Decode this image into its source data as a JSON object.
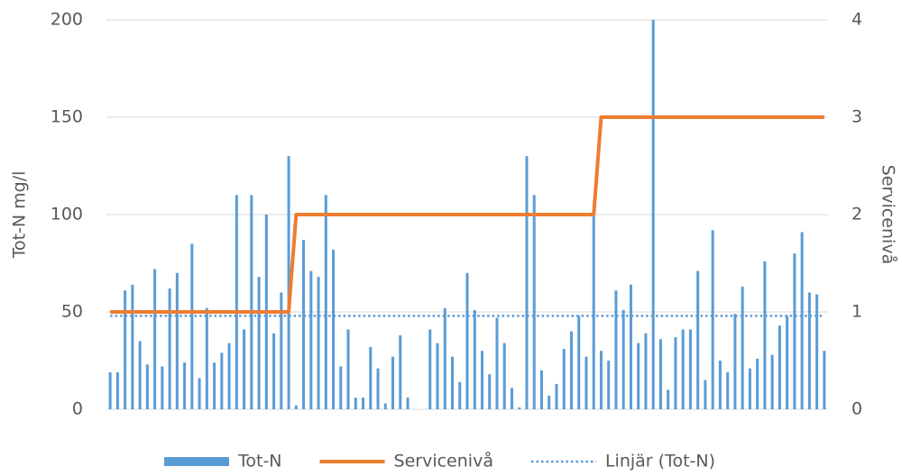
{
  "chart_data": {
    "type": "bar",
    "ylabel": "Tot-N mg/l",
    "y2label": "Servicenivå",
    "categories": [
      null,
      null,
      null,
      null,
      null,
      null,
      null,
      null,
      null,
      null,
      null,
      null,
      null,
      null,
      null,
      null,
      null,
      null,
      null,
      null,
      null,
      null,
      null,
      null,
      null,
      null,
      null,
      null,
      null,
      null,
      null,
      null,
      null,
      null,
      null,
      null,
      null,
      null,
      null,
      null,
      null,
      null,
      null,
      null,
      null,
      null,
      null,
      null,
      null,
      null,
      null,
      null,
      null,
      null,
      null,
      null,
      null,
      null,
      null,
      null,
      null,
      null,
      null,
      null,
      null,
      null,
      null,
      null,
      null,
      null,
      null,
      null,
      null,
      null,
      null,
      null,
      null,
      null,
      null,
      null,
      null,
      null,
      null,
      null,
      null,
      null,
      null,
      null,
      null,
      null,
      null,
      null,
      null,
      null,
      null,
      null,
      null
    ],
    "series": [
      {
        "name": "Tot-N",
        "type": "bar",
        "color": "#5b9bd5",
        "values": [
          19,
          19,
          61,
          64,
          35,
          23,
          72,
          22,
          62,
          70,
          24,
          85,
          16,
          52,
          24,
          29,
          34,
          110,
          41,
          110,
          68,
          100,
          39,
          60,
          130,
          2,
          87,
          71,
          68,
          110,
          82,
          22,
          41,
          6,
          6,
          32,
          21,
          3,
          27,
          38,
          6,
          0,
          0,
          41,
          34,
          52,
          27,
          14,
          70,
          51,
          30,
          18,
          47,
          34,
          11,
          1,
          130,
          110,
          20,
          7,
          13,
          31,
          40,
          48,
          27,
          100,
          30,
          25,
          61,
          51,
          64,
          34,
          39,
          200,
          36,
          10,
          37,
          41,
          41,
          71,
          15,
          92,
          25,
          19,
          49,
          63,
          21,
          26,
          76,
          28,
          43,
          48,
          80,
          91,
          60,
          59,
          30
        ]
      },
      {
        "name": "Servicenivå",
        "type": "line",
        "axis": "y2",
        "color": "#ed7d31",
        "values": [
          1,
          1,
          1,
          1,
          1,
          1,
          1,
          1,
          1,
          1,
          1,
          1,
          1,
          1,
          1,
          1,
          1,
          1,
          1,
          1,
          1,
          1,
          1,
          1,
          1,
          2,
          2,
          2,
          2,
          2,
          2,
          2,
          2,
          2,
          2,
          2,
          2,
          2,
          2,
          2,
          2,
          2,
          2,
          2,
          2,
          2,
          2,
          2,
          2,
          2,
          2,
          2,
          2,
          2,
          2,
          2,
          2,
          2,
          2,
          2,
          2,
          2,
          2,
          2,
          2,
          2,
          3,
          3,
          3,
          3,
          3,
          3,
          3,
          3,
          3,
          3,
          3,
          3,
          3,
          3,
          3,
          3,
          3,
          3,
          3,
          3,
          3,
          3,
          3,
          3,
          3,
          3,
          3,
          3,
          3,
          3,
          3
        ]
      }
    ],
    "trendline": {
      "name": "Linjär (Tot-N)",
      "color": "#5b9bd5",
      "values": [
        48,
        48
      ]
    },
    "ylim": [
      0,
      200
    ],
    "yticks": [
      0,
      50,
      100,
      150,
      200
    ],
    "y2lim": [
      0,
      4
    ],
    "y2ticks": [
      0,
      1,
      2,
      3,
      4
    ],
    "grid": true,
    "legend": "bottom"
  }
}
